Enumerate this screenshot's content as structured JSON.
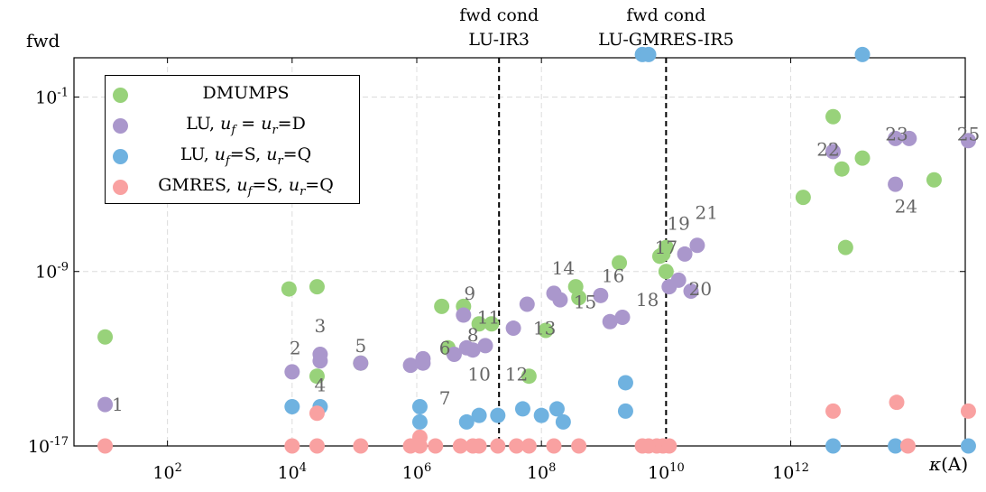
{
  "chart_data": {
    "type": "scatter",
    "xlabel": "κ(A)",
    "ylabel": "fwd",
    "x_scale": "log10",
    "y_scale": "log10",
    "xlim_log10": [
      0.5,
      14.8
    ],
    "ylim_log10": [
      -17,
      0.8
    ],
    "x_ticks": [
      {
        "exp": 2,
        "base": "10",
        "sup": "2"
      },
      {
        "exp": 4,
        "base": "10",
        "sup": "4"
      },
      {
        "exp": 6,
        "base": "10",
        "sup": "6"
      },
      {
        "exp": 8,
        "base": "10",
        "sup": "8"
      },
      {
        "exp": 10,
        "base": "10",
        "sup": "10"
      },
      {
        "exp": 12,
        "base": "10",
        "sup": "12"
      }
    ],
    "y_ticks": [
      {
        "exp": -17,
        "base": "10",
        "sup": "-17"
      },
      {
        "exp": -9,
        "base": "10",
        "sup": "-9"
      },
      {
        "exp": -1,
        "base": "10",
        "sup": "-1"
      }
    ],
    "grid": true,
    "legend_position": "top-left",
    "vlines": [
      {
        "x_log10": 7.32,
        "label1": "fwd cond",
        "label2": "LU-IR3"
      },
      {
        "x_log10": 10.0,
        "label1": "fwd cond",
        "label2": "LU-GMRES-IR5"
      }
    ],
    "series": [
      {
        "name": "DMUMPS",
        "color": "#98d27a",
        "points": [
          [
            1.0,
            -12.0
          ],
          [
            3.95,
            -9.8
          ],
          [
            4.4,
            -13.8
          ],
          [
            4.4,
            -9.7
          ],
          [
            5.1,
            -13.2
          ],
          [
            6.4,
            -10.6
          ],
          [
            6.5,
            -12.5
          ],
          [
            6.75,
            -10.6
          ],
          [
            7.2,
            -11.4
          ],
          [
            7.0,
            -11.4
          ],
          [
            7.8,
            -13.8
          ],
          [
            8.07,
            -11.7
          ],
          [
            8.6,
            -10.2
          ],
          [
            8.55,
            -9.7
          ],
          [
            9.25,
            -8.6
          ],
          [
            10.0,
            -9.0
          ],
          [
            9.9,
            -8.3
          ],
          [
            10.0,
            -7.9
          ],
          [
            9.95,
            -8.2
          ],
          [
            13.15,
            -3.8
          ],
          [
            12.2,
            -5.6
          ],
          [
            12.82,
            -4.3
          ],
          [
            12.88,
            -7.9
          ],
          [
            14.3,
            -4.8
          ],
          [
            15.3,
            -8.0
          ],
          [
            12.68,
            -1.9
          ]
        ]
      },
      {
        "name": "LU, u_f = u_r=D",
        "color": "#aa97cc",
        "points": [
          [
            1.0,
            -15.1
          ],
          [
            4.0,
            -13.6
          ],
          [
            4.45,
            -12.8
          ],
          [
            4.45,
            -13.1
          ],
          [
            5.1,
            -13.2
          ],
          [
            5.9,
            -13.3
          ],
          [
            6.1,
            -13.2
          ],
          [
            6.1,
            -13.0
          ],
          [
            6.6,
            -12.8
          ],
          [
            6.75,
            -11.0
          ],
          [
            6.8,
            -12.5
          ],
          [
            6.9,
            -12.6
          ],
          [
            7.1,
            -12.4
          ],
          [
            7.55,
            -11.6
          ],
          [
            7.77,
            -10.5
          ],
          [
            8.2,
            -10.0
          ],
          [
            8.3,
            -10.3
          ],
          [
            9.1,
            -11.3
          ],
          [
            9.3,
            -11.1
          ],
          [
            8.95,
            -10.1
          ],
          [
            10.05,
            -9.7
          ],
          [
            10.2,
            -9.4
          ],
          [
            10.4,
            -9.9
          ],
          [
            10.3,
            -8.2
          ],
          [
            10.5,
            -7.8
          ],
          [
            12.68,
            -3.5
          ],
          [
            13.68,
            -5.0
          ],
          [
            13.68,
            -2.9
          ],
          [
            13.9,
            -2.9
          ],
          [
            14.85,
            -3.0
          ]
        ]
      },
      {
        "name": "LU, u_f=S, u_r=Q",
        "color": "#6fb2e0",
        "points": [
          [
            4.0,
            -15.2
          ],
          [
            4.45,
            -15.2
          ],
          [
            6.05,
            -15.2
          ],
          [
            6.05,
            -15.9
          ],
          [
            6.8,
            -15.9
          ],
          [
            7.0,
            -15.6
          ],
          [
            7.3,
            -15.6
          ],
          [
            7.7,
            -15.3
          ],
          [
            8.0,
            -15.6
          ],
          [
            8.25,
            -15.3
          ],
          [
            8.35,
            -15.9
          ],
          [
            9.35,
            -14.1
          ],
          [
            9.35,
            -15.4
          ],
          [
            9.62,
            0.95
          ],
          [
            9.72,
            0.95
          ],
          [
            13.15,
            0.95
          ],
          [
            12.68,
            -17.0
          ],
          [
            13.68,
            -17.0
          ],
          [
            14.85,
            -17.0
          ]
        ]
      },
      {
        "name": "GMRES, u_f=S, u_r=Q",
        "color": "#f9a1a1",
        "points": [
          [
            1.0,
            -17.0
          ],
          [
            4.0,
            -17.0
          ],
          [
            4.4,
            -17.0
          ],
          [
            4.4,
            -15.5
          ],
          [
            5.1,
            -17.0
          ],
          [
            5.9,
            -17.0
          ],
          [
            6.05,
            -16.6
          ],
          [
            6.05,
            -17.0
          ],
          [
            6.3,
            -17.0
          ],
          [
            6.7,
            -17.0
          ],
          [
            6.9,
            -17.0
          ],
          [
            7.0,
            -17.0
          ],
          [
            7.3,
            -17.0
          ],
          [
            7.6,
            -17.0
          ],
          [
            7.8,
            -17.0
          ],
          [
            8.2,
            -17.0
          ],
          [
            8.6,
            -17.0
          ],
          [
            9.62,
            -17.0
          ],
          [
            9.72,
            -17.0
          ],
          [
            9.85,
            -17.0
          ],
          [
            9.95,
            -17.0
          ],
          [
            10.05,
            -17.0
          ],
          [
            12.68,
            -15.4
          ],
          [
            13.7,
            -15.0
          ],
          [
            13.88,
            -17.0
          ],
          [
            14.85,
            -15.4
          ]
        ]
      }
    ],
    "annotations": [
      {
        "text": "1",
        "x_log10": 1.2,
        "y_log10": -15.1
      },
      {
        "text": "2",
        "x_log10": 4.05,
        "y_log10": -12.5
      },
      {
        "text": "3",
        "x_log10": 4.45,
        "y_log10": -11.5
      },
      {
        "text": "4",
        "x_log10": 4.45,
        "y_log10": -14.2
      },
      {
        "text": "5",
        "x_log10": 5.1,
        "y_log10": -12.4
      },
      {
        "text": "6",
        "x_log10": 6.45,
        "y_log10": -12.5
      },
      {
        "text": "7",
        "x_log10": 6.45,
        "y_log10": -14.8
      },
      {
        "text": "8",
        "x_log10": 6.9,
        "y_log10": -11.9
      },
      {
        "text": "9",
        "x_log10": 6.85,
        "y_log10": -10.0
      },
      {
        "text": "10",
        "x_log10": 7.0,
        "y_log10": -13.7
      },
      {
        "text": "11",
        "x_log10": 7.15,
        "y_log10": -11.1
      },
      {
        "text": "12",
        "x_log10": 7.6,
        "y_log10": -13.7
      },
      {
        "text": "13",
        "x_log10": 8.05,
        "y_log10": -11.6
      },
      {
        "text": "14",
        "x_log10": 8.35,
        "y_log10": -8.85
      },
      {
        "text": "15",
        "x_log10": 8.7,
        "y_log10": -10.4
      },
      {
        "text": "16",
        "x_log10": 9.15,
        "y_log10": -9.2
      },
      {
        "text": "17",
        "x_log10": 10.0,
        "y_log10": -7.9
      },
      {
        "text": "18",
        "x_log10": 9.7,
        "y_log10": -10.3
      },
      {
        "text": "19",
        "x_log10": 10.2,
        "y_log10": -6.8
      },
      {
        "text": "20",
        "x_log10": 10.55,
        "y_log10": -9.8
      },
      {
        "text": "21",
        "x_log10": 10.65,
        "y_log10": -6.3
      },
      {
        "text": "22",
        "x_log10": 12.6,
        "y_log10": -3.4
      },
      {
        "text": "23",
        "x_log10": 13.7,
        "y_log10": -2.7
      },
      {
        "text": "24",
        "x_log10": 13.85,
        "y_log10": -6.0
      },
      {
        "text": "25",
        "x_log10": 14.85,
        "y_log10": -2.7
      }
    ]
  },
  "legend": {
    "dmumps": "DMUMPS",
    "lu_d_pre": "LU, ",
    "lu_d_math": "u",
    "lu_d_sub": "f",
    "lu_d_eq": " = ",
    "lu_d_math2": "u",
    "lu_d_sub2": "r",
    "lu_d_post": "=D",
    "lu_sq_pre": "LU, ",
    "lu_sq_math": "u",
    "lu_sq_sub": "f",
    "lu_sq_mid": "=S, ",
    "lu_sq_math2": "u",
    "lu_sq_sub2": "r",
    "lu_sq_post": "=Q",
    "gm_pre": "GMRES, ",
    "gm_math": "u",
    "gm_sub": "f",
    "gm_mid": "=S, ",
    "gm_math2": "u",
    "gm_sub2": "r",
    "gm_post": "=Q"
  },
  "axis_labels": {
    "y": "fwd",
    "x_kappa": "κ",
    "x_arg": "(A)"
  }
}
